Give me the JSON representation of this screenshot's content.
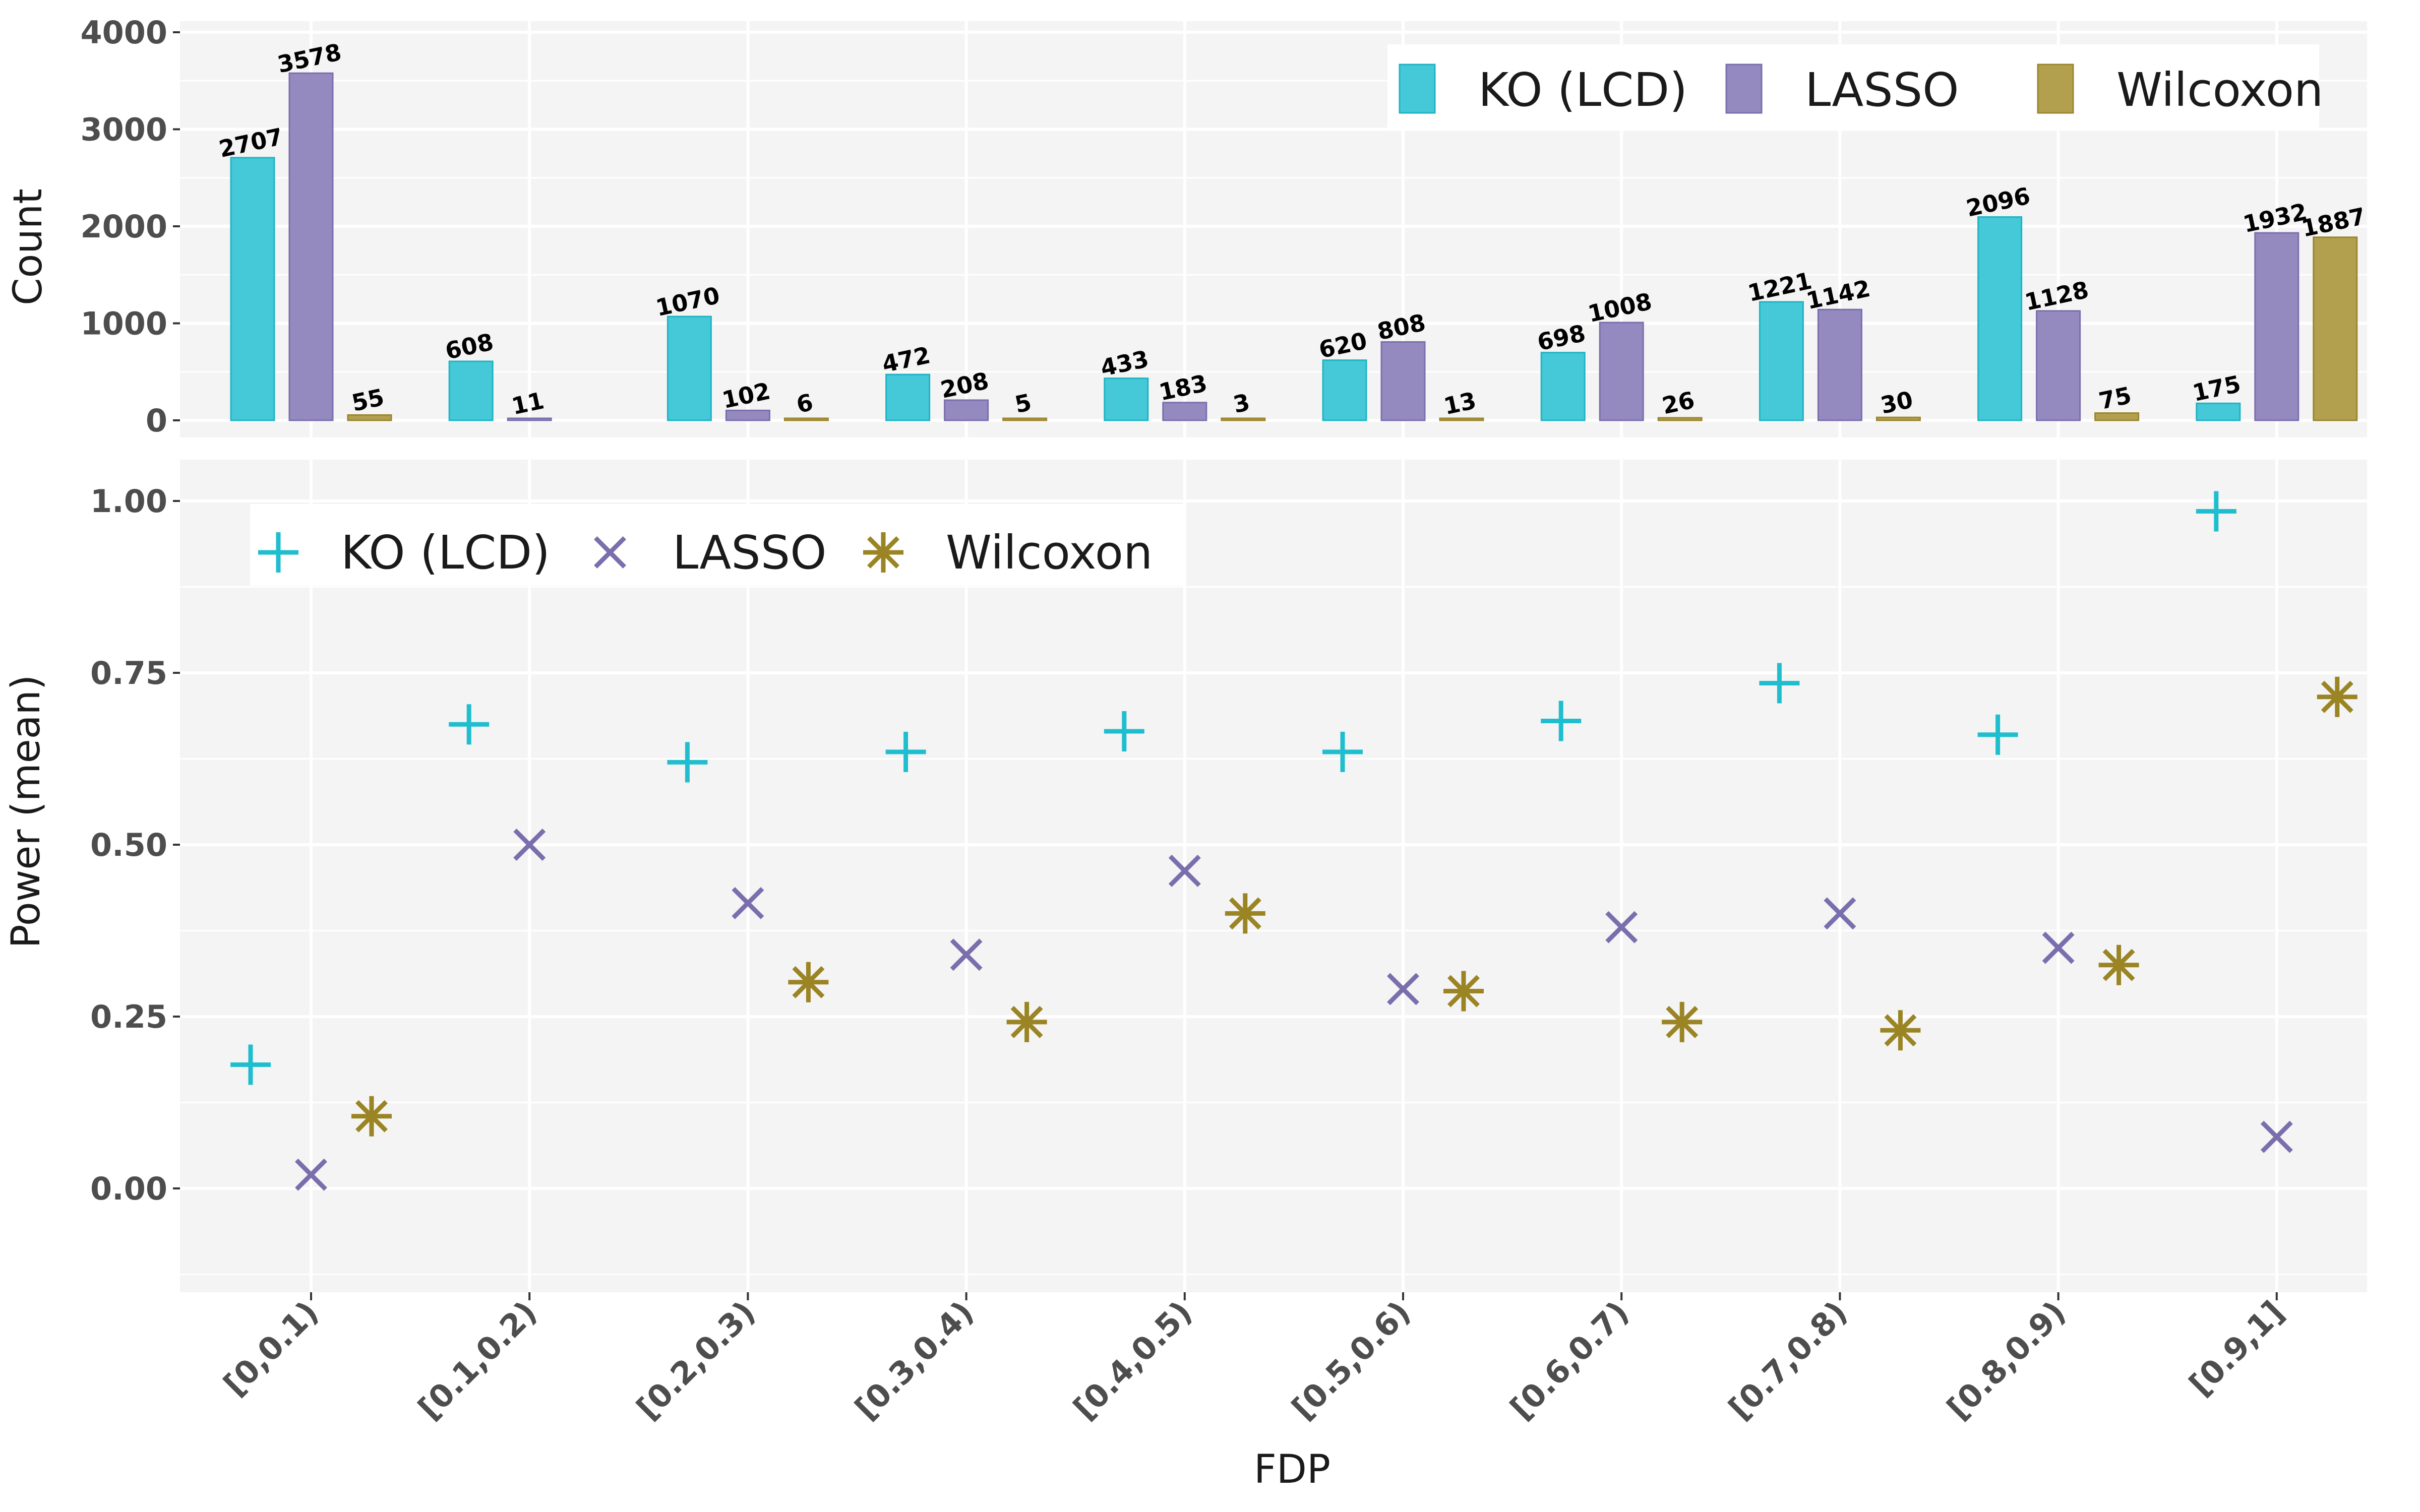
{
  "chart_data": [
    {
      "type": "bar",
      "xlabel": "",
      "ylabel": "Count",
      "ylim": [
        0,
        4000
      ],
      "yticks": [
        "0",
        "1000",
        "2000",
        "3000",
        "4000"
      ],
      "grid": true,
      "legend_position": "top-right",
      "categories": [
        "[0,0.1)",
        "[0.1,0.2)",
        "[0.2,0.3)",
        "[0.3,0.4)",
        "[0.4,0.5)",
        "[0.5,0.6)",
        "[0.6,0.7)",
        "[0.7,0.8)",
        "[0.8,0.9)",
        "[0.9,1]"
      ],
      "series": [
        {
          "name": "KO (LCD)",
          "color": "#45C8D7",
          "stroke": "#1FB4C4",
          "values": [
            2707,
            608,
            1070,
            472,
            433,
            620,
            698,
            1221,
            2096,
            175
          ]
        },
        {
          "name": "LASSO",
          "color": "#958ABF",
          "stroke": "#7A6EAD",
          "values": [
            3578,
            11,
            102,
            208,
            183,
            808,
            1008,
            1142,
            1128,
            1932
          ]
        },
        {
          "name": "Wilcoxon",
          "color": "#B3A04F",
          "stroke": "#9A862C",
          "values": [
            55,
            null,
            6,
            5,
            3,
            13,
            26,
            30,
            75,
            1887
          ]
        }
      ]
    },
    {
      "type": "scatter",
      "xlabel": "FDP",
      "ylabel": "Power (mean)",
      "ylim": [
        -0.15,
        1.05
      ],
      "yticks": [
        "0.00",
        "0.25",
        "0.50",
        "0.75",
        "1.00"
      ],
      "grid": true,
      "legend_position": "top-left",
      "categories": [
        "[0,0.1)",
        "[0.1,0.2)",
        "[0.2,0.3)",
        "[0.3,0.4)",
        "[0.4,0.5)",
        "[0.5,0.6)",
        "[0.6,0.7)",
        "[0.7,0.8)",
        "[0.8,0.9)",
        "[0.9,1]"
      ],
      "series": [
        {
          "name": "KO (LCD)",
          "marker": "plus",
          "color": "#1FBECF",
          "values": [
            0.18,
            0.675,
            0.62,
            0.635,
            0.665,
            0.635,
            0.68,
            0.735,
            0.66,
            0.985
          ]
        },
        {
          "name": "LASSO",
          "marker": "cross",
          "color": "#7A6EAD",
          "values": [
            0.02,
            0.5,
            0.415,
            0.34,
            0.462,
            0.29,
            0.38,
            0.4,
            0.35,
            0.075
          ]
        },
        {
          "name": "Wilcoxon",
          "marker": "asterisk",
          "color": "#9A8424",
          "values": [
            0.105,
            null,
            0.3,
            0.242,
            0.4,
            0.287,
            0.242,
            0.23,
            0.325,
            0.715
          ]
        }
      ]
    }
  ]
}
